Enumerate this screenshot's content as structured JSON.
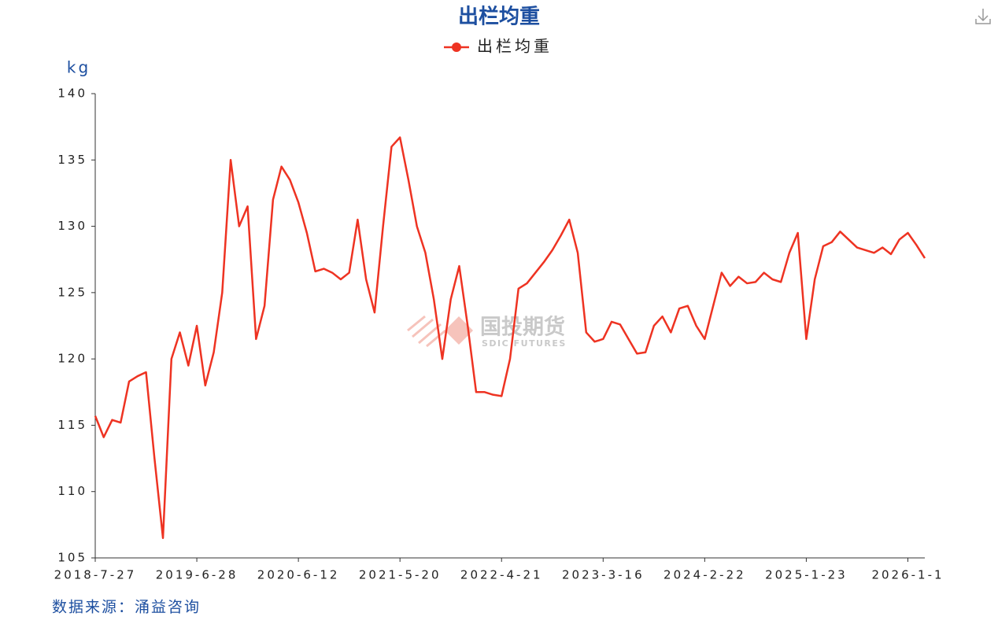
{
  "chart_data": {
    "type": "line",
    "title": "出栏均重",
    "y_label": "kg",
    "source": "数据来源：涌益咨询",
    "watermark": {
      "text": "国投期货",
      "subtext": "SDIC FUTURES"
    },
    "categories": [
      "2018-7-27",
      null,
      null,
      null,
      null,
      null,
      null,
      null,
      null,
      null,
      null,
      null,
      "2019-6-28",
      null,
      null,
      null,
      null,
      null,
      null,
      null,
      null,
      null,
      null,
      null,
      "2020-6-12",
      null,
      null,
      null,
      null,
      null,
      null,
      null,
      null,
      null,
      null,
      null,
      "2021-5-20",
      null,
      null,
      null,
      null,
      null,
      null,
      null,
      null,
      null,
      null,
      null,
      "2022-4-21",
      null,
      null,
      null,
      null,
      null,
      null,
      null,
      null,
      null,
      null,
      null,
      "2023-3-16",
      null,
      null,
      null,
      null,
      null,
      null,
      null,
      null,
      null,
      null,
      null,
      "2024-2-22",
      null,
      null,
      null,
      null,
      null,
      null,
      null,
      null,
      null,
      null,
      null,
      "2025-1-23",
      null,
      null,
      null,
      null,
      null,
      null,
      null,
      null,
      null,
      null,
      null,
      "2026-1-1",
      null,
      null
    ],
    "series": [
      {
        "name": "出栏均重",
        "color": "#ee3322",
        "values": [
          115.7,
          114.1,
          115.4,
          115.2,
          118.3,
          118.7,
          119.0,
          112.5,
          106.5,
          120.0,
          122.0,
          119.5,
          122.5,
          118.0,
          120.5,
          125.0,
          135.0,
          130.0,
          131.5,
          121.5,
          124.0,
          132.0,
          134.5,
          133.5,
          131.8,
          129.5,
          126.6,
          126.8,
          126.5,
          126.0,
          126.5,
          130.5,
          126.0,
          123.5,
          130.0,
          136.0,
          136.7,
          133.5,
          130.0,
          128.0,
          124.5,
          120.0,
          124.5,
          127.0,
          122.5,
          117.5,
          117.5,
          117.3,
          117.2,
          120.0,
          125.3,
          125.7,
          126.5,
          127.3,
          128.2,
          129.3,
          130.5,
          128.0,
          122.0,
          121.3,
          121.5,
          122.8,
          122.6,
          121.5,
          120.4,
          120.5,
          122.5,
          123.2,
          122.0,
          123.8,
          124.0,
          122.5,
          121.5,
          124.0,
          126.5,
          125.5,
          126.2,
          125.7,
          125.8,
          126.5,
          126.0,
          125.8,
          128.0,
          129.5,
          121.5,
          126.0,
          128.5,
          128.8,
          129.6,
          129.0,
          128.4,
          128.2,
          128.0,
          128.4,
          127.9,
          129.0,
          129.5,
          128.6,
          127.6
        ]
      }
    ],
    "ylim": [
      105,
      140
    ],
    "yticks": [
      105,
      110,
      115,
      120,
      125,
      130,
      135,
      140
    ],
    "grid": false
  }
}
